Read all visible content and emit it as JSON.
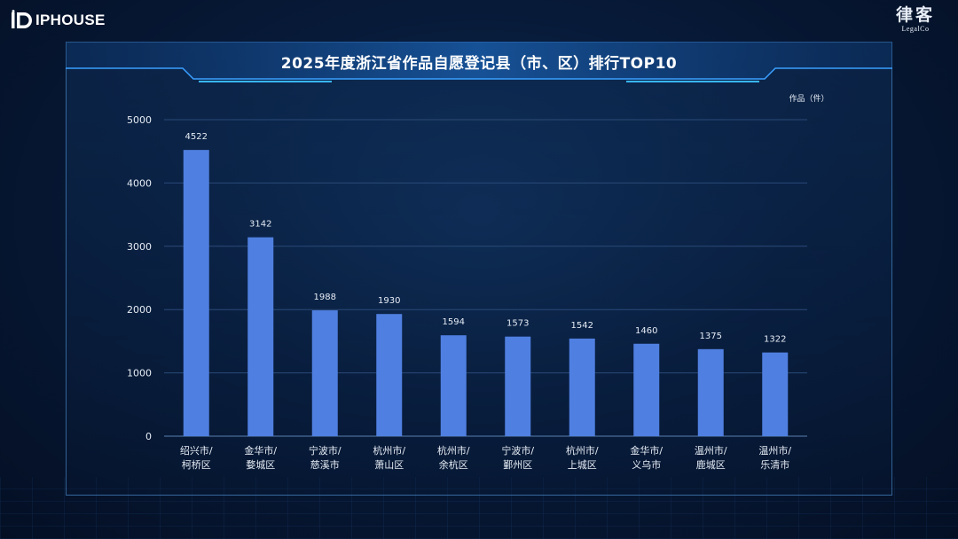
{
  "brand": {
    "left_logo": "IPHOUSE",
    "right_logo_cn": "律客",
    "right_logo_en": "LegalCo"
  },
  "colors": {
    "bar": "#4f7fe0",
    "grid": "#2a4a78",
    "text": "#e6ecf5"
  },
  "chart_data": {
    "type": "bar",
    "title": "2025年度浙江省作品自愿登记县（市、区）排行TOP10",
    "ylabel": "作品（件）",
    "xlabel": "",
    "ylim": [
      0,
      5000
    ],
    "yticks": [
      0,
      1000,
      2000,
      3000,
      4000,
      5000
    ],
    "grid": true,
    "categories": [
      [
        "绍兴市/",
        "柯桥区"
      ],
      [
        "金华市/",
        "婺城区"
      ],
      [
        "宁波市/",
        "慈溪市"
      ],
      [
        "杭州市/",
        "萧山区"
      ],
      [
        "杭州市/",
        "余杭区"
      ],
      [
        "宁波市/",
        "鄞州区"
      ],
      [
        "杭州市/",
        "上城区"
      ],
      [
        "金华市/",
        "义乌市"
      ],
      [
        "温州市/",
        "鹿城区"
      ],
      [
        "温州市/",
        "乐清市"
      ]
    ],
    "values": [
      4522,
      3142,
      1988,
      1930,
      1594,
      1573,
      1542,
      1460,
      1375,
      1322
    ]
  }
}
